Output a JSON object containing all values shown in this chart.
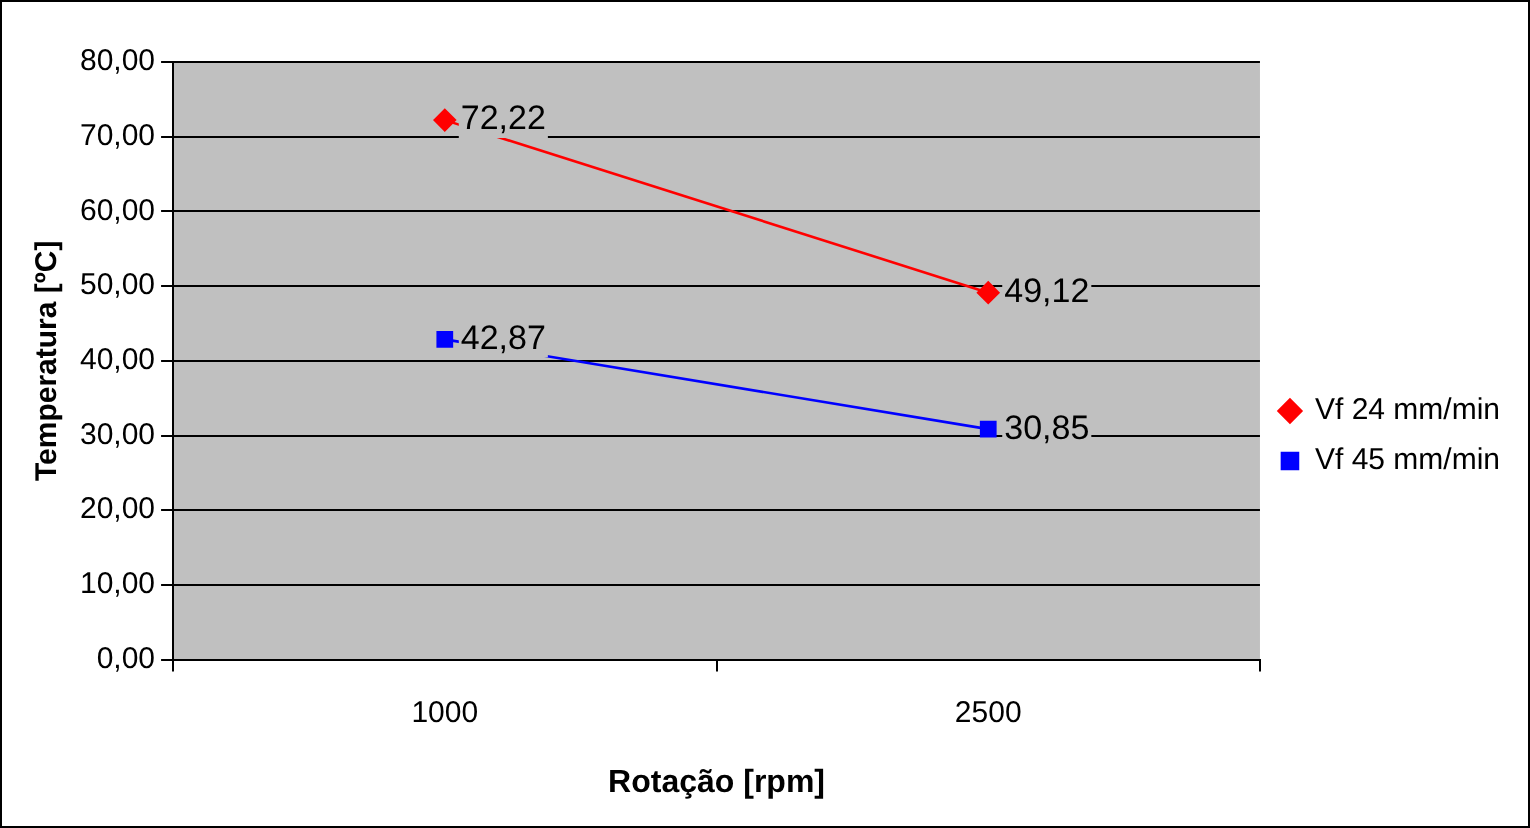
{
  "chart_data": {
    "type": "line",
    "xlabel": "Rotação [rpm]",
    "ylabel": "Temperatura [ºC]",
    "categories": [
      "1000",
      "2500"
    ],
    "series": [
      {
        "name": "Vf 24 mm/min",
        "color": "#ff0000",
        "values": [
          72.22,
          49.12
        ],
        "value_labels": [
          "72,22",
          "49,12"
        ],
        "marker": "diamond"
      },
      {
        "name": "Vf 45 mm/min",
        "color": "#0000ff",
        "values": [
          42.87,
          30.85
        ],
        "value_labels": [
          "42,87",
          "30,85"
        ],
        "marker": "square"
      }
    ],
    "ylim": [
      0,
      80
    ],
    "yticks": [
      {
        "value": 0,
        "label": "0,00"
      },
      {
        "value": 10,
        "label": "10,00"
      },
      {
        "value": 20,
        "label": "20,00"
      },
      {
        "value": 30,
        "label": "30,00"
      },
      {
        "value": 40,
        "label": "40,00"
      },
      {
        "value": 50,
        "label": "50,00"
      },
      {
        "value": 60,
        "label": "60,00"
      },
      {
        "value": 70,
        "label": "70,00"
      },
      {
        "value": 80,
        "label": "80,00"
      }
    ],
    "grid": "y",
    "legend": "right",
    "line_style": "solid"
  }
}
